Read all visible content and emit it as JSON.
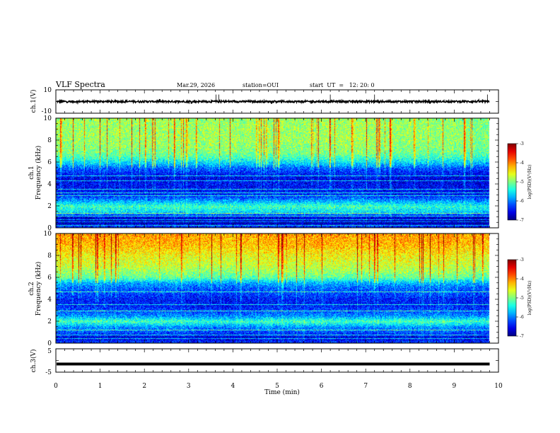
{
  "header": {
    "title": "VLF Spectra",
    "date": "Mar.29, 2026",
    "station": "station=OUI",
    "start_ut": "start  UT  =   12: 20: 0"
  },
  "chart_data": [
    {
      "type": "line",
      "name": "ch1-waveform",
      "ylabel": "ch.1(V)",
      "ylim": [
        -10,
        10
      ],
      "yticks": [
        "10",
        "-10"
      ],
      "xlim": [
        0,
        10
      ],
      "baseline": 0,
      "data_extent_min": 9.8,
      "spikes_min": [
        3.62,
        3.68,
        6.2,
        7.2,
        9.75
      ]
    },
    {
      "type": "heatmap",
      "name": "ch1-spectrogram",
      "ylabel_line1": "ch.1",
      "ylabel_line2": "Frequency (kHz)",
      "ylim": [
        0,
        10
      ],
      "yticks": [
        "0",
        "2",
        "4",
        "6",
        "8",
        "10"
      ],
      "xlim": [
        0,
        10
      ],
      "data_extent_min": 9.8,
      "colorbar": {
        "label": "log(PSD)(V²/Hz)",
        "range": [
          -7,
          -3
        ],
        "ticks": [
          "-3",
          "-4",
          "-5",
          "-6",
          "-7"
        ]
      },
      "profile_khz": [
        0,
        0.5,
        1.0,
        1.5,
        2.0,
        2.5,
        3.0,
        3.5,
        4.0,
        4.5,
        5.0,
        5.5,
        6.0,
        6.5,
        7.0,
        8.0,
        9.0,
        10.0
      ],
      "profile_log_psd": [
        -6.2,
        -6.9,
        -6.6,
        -5.6,
        -5.3,
        -5.9,
        -6.4,
        -6.5,
        -6.5,
        -6.6,
        -6.4,
        -6.1,
        -5.6,
        -5.2,
        -5.0,
        -4.9,
        -4.9,
        -4.9
      ],
      "tones_khz": [
        0.25,
        0.55,
        0.75,
        1.1,
        1.35,
        2.95,
        3.2,
        3.55,
        4.35,
        4.8
      ]
    },
    {
      "type": "heatmap",
      "name": "ch2-spectrogram",
      "ylabel_line1": "ch.2",
      "ylabel_line2": "Frequency (kHz)",
      "ylim": [
        0,
        10
      ],
      "yticks": [
        "0",
        "2",
        "4",
        "6",
        "8",
        "10"
      ],
      "xlim": [
        0,
        10
      ],
      "data_extent_min": 9.8,
      "colorbar": {
        "label": "log(PSD)(V²/Hz)",
        "range": [
          -7,
          -3
        ],
        "ticks": [
          "-3",
          "-4",
          "-5",
          "-6",
          "-7"
        ]
      },
      "profile_khz": [
        0,
        0.5,
        1.0,
        1.5,
        2.0,
        2.5,
        3.0,
        3.5,
        4.0,
        4.5,
        5.0,
        5.5,
        6.0,
        6.5,
        7.0,
        8.0,
        9.0,
        10.0
      ],
      "profile_log_psd": [
        -6.2,
        -6.6,
        -6.2,
        -5.9,
        -5.2,
        -5.9,
        -6.2,
        -6.4,
        -6.4,
        -6.2,
        -6.1,
        -5.8,
        -5.1,
        -4.9,
        -4.7,
        -4.5,
        -4.2,
        -4.1
      ],
      "tones_khz": [
        0.45,
        0.8,
        1.25,
        2.95,
        3.55,
        4.7
      ]
    },
    {
      "type": "line",
      "name": "ch3-waveform",
      "ylabel": "ch.3(V)",
      "ylim": [
        -5,
        5
      ],
      "yticks": [
        "5",
        "-5"
      ],
      "xlim": [
        0,
        10
      ],
      "baseline": -1.5,
      "data_extent_min": 9.8
    }
  ],
  "xaxis": {
    "label": "Time (min)",
    "ticks": [
      "0",
      "1",
      "2",
      "3",
      "4",
      "5",
      "6",
      "7",
      "8",
      "9",
      "10"
    ]
  }
}
